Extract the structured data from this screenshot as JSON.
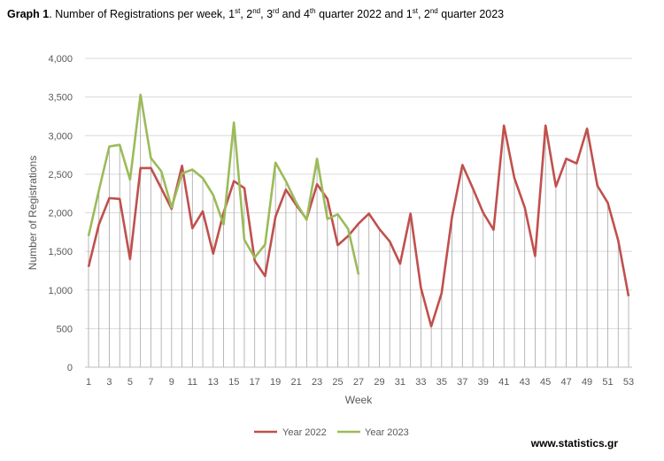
{
  "title": {
    "bold": "Graph 1",
    "text": "Number of Registrations per week, 1st, 2nd, 3rd and 4th quarter 2022 and 1st, 2nd quarter 2023"
  },
  "source": "www.statistics.gr",
  "colors": {
    "year2022": "#c0504d",
    "year2023": "#9bbb59",
    "grid": "#d9d9d9",
    "drop": "#a6a6a6"
  },
  "chart_data": {
    "type": "line",
    "xlabel": "Week",
    "ylabel": "Number of Registrations",
    "ylim": [
      0,
      4000
    ],
    "yticks": [
      0,
      500,
      1000,
      1500,
      2000,
      2500,
      3000,
      3500,
      4000
    ],
    "ytick_labels": [
      "0",
      "500",
      "1,000",
      "1,500",
      "2,000",
      "2,500",
      "3,000",
      "3,500",
      "4,000"
    ],
    "xlim": [
      1,
      53
    ],
    "xticks": [
      1,
      3,
      5,
      7,
      9,
      11,
      13,
      15,
      17,
      19,
      21,
      23,
      25,
      27,
      29,
      31,
      33,
      35,
      37,
      39,
      41,
      43,
      45,
      47,
      49,
      51,
      53
    ],
    "grid": "horizontal",
    "drop_lines": true,
    "legend": "bottom-center",
    "series": [
      {
        "name": "Year 2022",
        "x": [
          1,
          2,
          3,
          4,
          5,
          6,
          7,
          8,
          9,
          10,
          11,
          12,
          13,
          14,
          15,
          16,
          17,
          18,
          19,
          20,
          21,
          22,
          23,
          24,
          25,
          26,
          27,
          28,
          29,
          30,
          31,
          32,
          33,
          34,
          35,
          36,
          37,
          38,
          39,
          40,
          41,
          42,
          43,
          44,
          45,
          46,
          47,
          48,
          49,
          50,
          51,
          52,
          53
        ],
        "values": [
          1300,
          1850,
          2190,
          2180,
          1400,
          2580,
          2580,
          2320,
          2050,
          2610,
          1800,
          2020,
          1470,
          2000,
          2410,
          2320,
          1380,
          1180,
          1950,
          2300,
          2100,
          1920,
          2370,
          2180,
          1580,
          1700,
          1860,
          1990,
          1790,
          1630,
          1340,
          1990,
          1030,
          530,
          960,
          1950,
          2620,
          2320,
          2000,
          1780,
          3130,
          2450,
          2070,
          1440,
          3130,
          2340,
          2700,
          2640,
          3090,
          2350,
          2130,
          1640,
          920
        ]
      },
      {
        "name": "Year 2023",
        "x": [
          1,
          2,
          3,
          4,
          5,
          6,
          7,
          8,
          9,
          10,
          11,
          12,
          13,
          14,
          15,
          16,
          17,
          18,
          19,
          20,
          21,
          22,
          23,
          24,
          25,
          26,
          27
        ],
        "values": [
          1700,
          2290,
          2860,
          2880,
          2430,
          3530,
          2710,
          2540,
          2070,
          2510,
          2560,
          2450,
          2230,
          1850,
          3170,
          1650,
          1420,
          1590,
          2650,
          2410,
          2130,
          1910,
          2700,
          1920,
          1980,
          1790,
          1200
        ]
      }
    ]
  }
}
